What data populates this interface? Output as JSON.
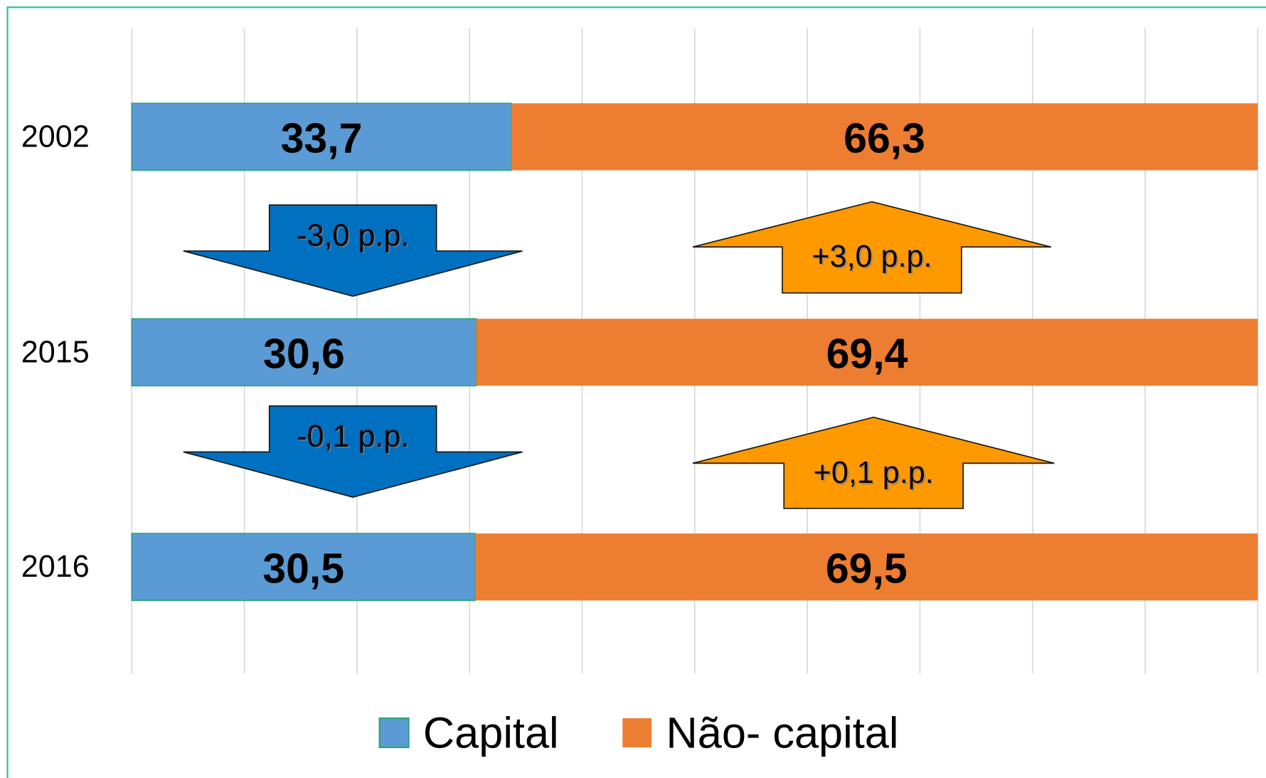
{
  "chart_data": {
    "type": "stacked_bar_horizontal",
    "categories": [
      "2002",
      "2015",
      "2016"
    ],
    "series": [
      {
        "name": "Capital",
        "color": "#5b9bd5",
        "values": [
          33.7,
          30.6,
          30.5
        ],
        "value_labels": [
          "33,7",
          "30,6",
          "30,5"
        ]
      },
      {
        "name": "Não- capital",
        "color": "#ed7d31",
        "values": [
          66.3,
          69.4,
          69.5
        ],
        "value_labels": [
          "66,3",
          "69,4",
          "69,5"
        ]
      }
    ],
    "xlim": [
      0,
      100
    ],
    "xticks": [
      0,
      10,
      20,
      30,
      40,
      50,
      60,
      70,
      80,
      90,
      100
    ],
    "grid": true,
    "legend": "bottom",
    "annotations": [
      "-3,0 p.p.",
      "+3,0 p.p.",
      "-0,1 p.p.",
      "+0,1 p.p."
    ]
  }
}
